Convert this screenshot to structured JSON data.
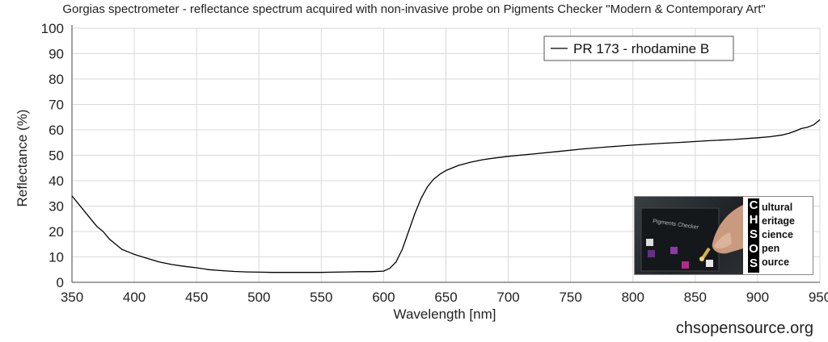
{
  "chart_data": {
    "type": "line",
    "title": "Gorgias spectrometer - reflectance spectrum acquired with non-invasive probe on Pigments Checker \"Modern & Contemporary Art\"",
    "xlabel": "Wavelength [nm]",
    "ylabel": "Reflectance (%)",
    "xlim": [
      350,
      950
    ],
    "ylim": [
      0,
      100
    ],
    "xticks": [
      350,
      400,
      450,
      500,
      550,
      600,
      650,
      700,
      750,
      800,
      850,
      900,
      950
    ],
    "yticks": [
      0,
      10,
      20,
      30,
      40,
      50,
      60,
      70,
      80,
      90,
      100
    ],
    "grid": true,
    "legend_position": "top-right",
    "series": [
      {
        "name": "PR 173 - rhodamine B",
        "color": "#000000",
        "x": [
          350,
          355,
          360,
          365,
          370,
          375,
          380,
          385,
          390,
          395,
          400,
          410,
          420,
          430,
          440,
          450,
          460,
          470,
          480,
          490,
          500,
          510,
          520,
          530,
          540,
          550,
          560,
          570,
          580,
          590,
          600,
          605,
          610,
          615,
          620,
          625,
          630,
          635,
          640,
          645,
          650,
          660,
          670,
          680,
          690,
          700,
          720,
          740,
          760,
          780,
          800,
          820,
          840,
          860,
          880,
          900,
          910,
          920,
          925,
          930,
          935,
          940,
          945,
          950
        ],
        "y": [
          34,
          31,
          28,
          25,
          22,
          20,
          17,
          15,
          13,
          12,
          11,
          9.5,
          8,
          7,
          6.3,
          5.7,
          5,
          4.6,
          4.3,
          4.1,
          4,
          3.9,
          3.9,
          3.9,
          3.9,
          3.9,
          4,
          4.1,
          4.2,
          4.2,
          4.4,
          5.5,
          8,
          13,
          20,
          27,
          33,
          37.5,
          40.5,
          42.5,
          44,
          46,
          47.3,
          48.3,
          49,
          49.6,
          50.5,
          51.5,
          52.5,
          53.3,
          54,
          54.6,
          55.1,
          55.7,
          56.2,
          56.9,
          57.3,
          58,
          58.6,
          59.5,
          60.5,
          61,
          62,
          64
        ]
      }
    ]
  },
  "watermark": "chsopensource.org",
  "logo": {
    "letters": [
      "C",
      "H",
      "S",
      "O",
      "S"
    ],
    "words": [
      "ultural",
      "eritage",
      "cience",
      "pen",
      "ource"
    ],
    "photo_caption": "Pigments Checker"
  }
}
